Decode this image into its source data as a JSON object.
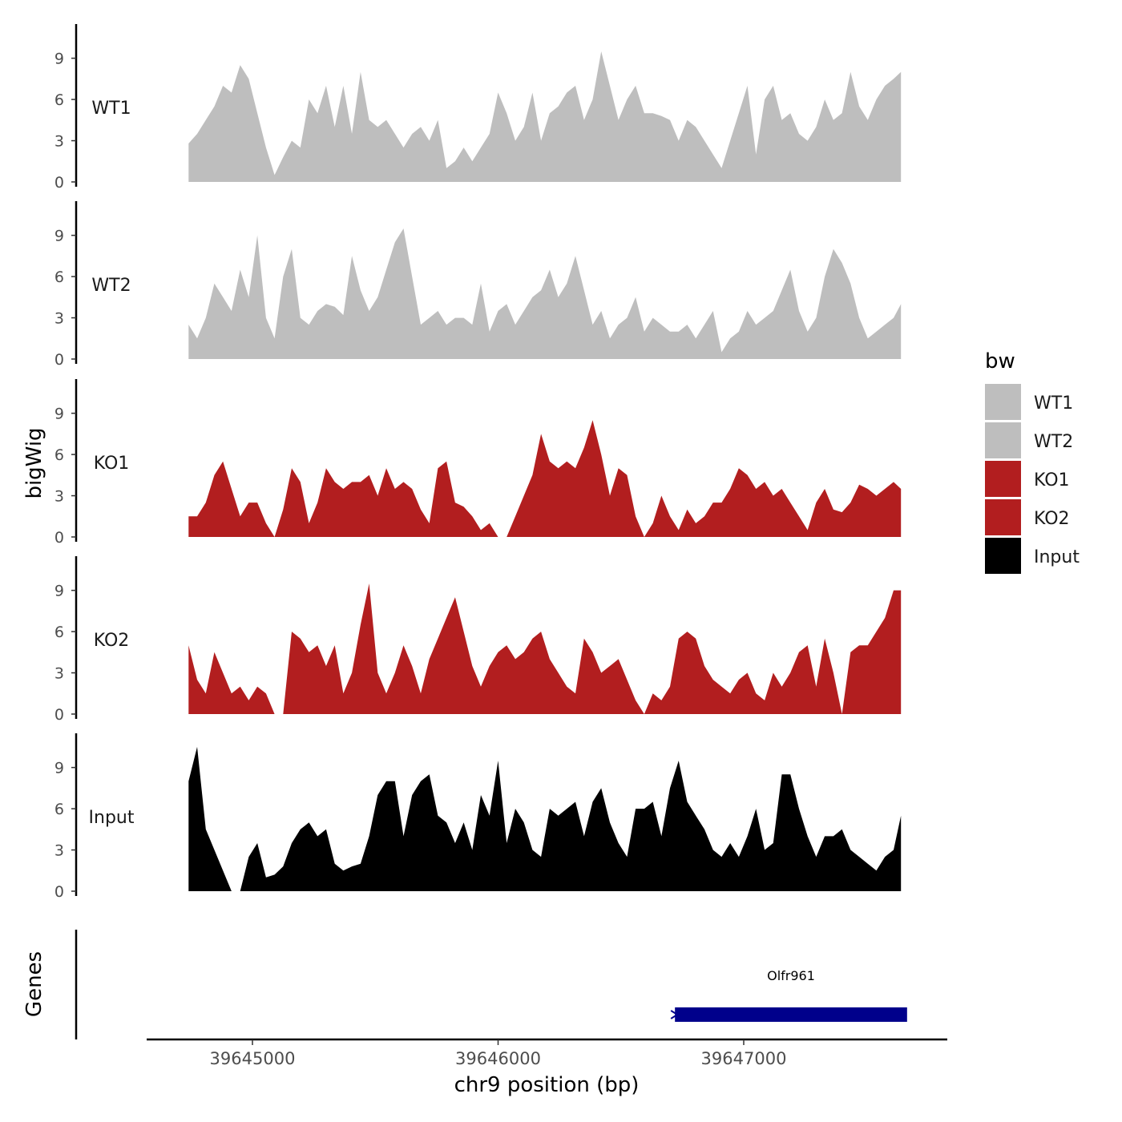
{
  "chart_data": {
    "type": "area",
    "ylabel": "bigWig",
    "xlabel": "chr9 position (bp)",
    "genes_label": "Genes",
    "legend": {
      "title": "bw",
      "position": "right"
    },
    "x_range": [
      39644400,
      39647750
    ],
    "x_ticks": [
      {
        "value": 39645000,
        "label": "39645000"
      },
      {
        "value": 39646000,
        "label": "39646000"
      },
      {
        "value": 39647000,
        "label": "39647000"
      }
    ],
    "y_range": [
      0,
      11.5
    ],
    "y_ticks": [
      {
        "value": 0,
        "label": "0"
      },
      {
        "value": 3,
        "label": "3"
      },
      {
        "value": 6,
        "label": "6"
      },
      {
        "value": 9,
        "label": "9"
      }
    ],
    "x": [
      39644740,
      39644775,
      39644810,
      39644845,
      39644880,
      39644915,
      39644950,
      39644985,
      39645020,
      39645055,
      39645090,
      39645125,
      39645160,
      39645195,
      39645230,
      39645265,
      39645300,
      39645335,
      39645370,
      39645405,
      39645440,
      39645475,
      39645510,
      39645545,
      39645580,
      39645615,
      39645650,
      39645685,
      39645720,
      39645755,
      39645790,
      39645825,
      39645860,
      39645895,
      39645930,
      39645965,
      39646000,
      39646035,
      39646070,
      39646105,
      39646140,
      39646175,
      39646210,
      39646245,
      39646280,
      39646315,
      39646350,
      39646385,
      39646420,
      39646455,
      39646490,
      39646525,
      39646560,
      39646595,
      39646630,
      39646665,
      39646700,
      39646735,
      39646770,
      39646805,
      39646840,
      39646875,
      39646910,
      39646945,
      39646980,
      39647015,
      39647050,
      39647085,
      39647120,
      39647155,
      39647190,
      39647225,
      39647260,
      39647295,
      39647330,
      39647365,
      39647400,
      39647435,
      39647470,
      39647505,
      39647540,
      39647575,
      39647610,
      39647640
    ],
    "series": [
      {
        "name": "WT1",
        "color": "#bebebe",
        "values": [
          2.8,
          3.5,
          4.5,
          5.5,
          7.0,
          6.5,
          8.5,
          7.5,
          5.0,
          2.5,
          0.5,
          1.8,
          3.0,
          2.5,
          6.0,
          5.0,
          7.0,
          4.0,
          7.0,
          3.5,
          8.0,
          4.5,
          4.0,
          4.5,
          3.5,
          2.5,
          3.5,
          4.0,
          3.0,
          4.5,
          1.0,
          1.5,
          2.5,
          1.5,
          2.5,
          3.5,
          6.5,
          5.0,
          3.0,
          4.0,
          6.5,
          3.0,
          5.0,
          5.5,
          6.5,
          7.0,
          4.5,
          6.0,
          9.5,
          7.0,
          4.5,
          6.0,
          7.0,
          5.0,
          5.0,
          4.8,
          4.5,
          3.0,
          4.5,
          4.0,
          3.0,
          2.0,
          1.0,
          3.0,
          5.0,
          7.0,
          2.0,
          6.0,
          7.0,
          4.5,
          5.0,
          3.5,
          3.0,
          4.0,
          6.0,
          4.5,
          5.0,
          8.0,
          5.5,
          4.5,
          6.0,
          7.0,
          7.5,
          8.0
        ]
      },
      {
        "name": "WT2",
        "color": "#bebebe",
        "values": [
          2.5,
          1.5,
          3.0,
          5.5,
          4.5,
          3.5,
          6.5,
          4.5,
          9.0,
          3.0,
          1.5,
          6.0,
          8.0,
          3.0,
          2.5,
          3.5,
          4.0,
          3.8,
          3.2,
          7.5,
          5.0,
          3.5,
          4.5,
          6.5,
          8.5,
          9.5,
          6.0,
          2.5,
          3.0,
          3.5,
          2.5,
          3.0,
          3.0,
          2.5,
          5.5,
          2.0,
          3.5,
          4.0,
          2.5,
          3.5,
          4.5,
          5.0,
          6.5,
          4.5,
          5.5,
          7.5,
          5.0,
          2.5,
          3.5,
          1.5,
          2.5,
          3.0,
          4.5,
          2.0,
          3.0,
          2.5,
          2.0,
          2.0,
          2.5,
          1.5,
          2.5,
          3.5,
          0.5,
          1.5,
          2.0,
          3.5,
          2.5,
          3.0,
          3.5,
          5.0,
          6.5,
          3.5,
          2.0,
          3.0,
          6.0,
          8.0,
          7.0,
          5.5,
          3.0,
          1.5,
          2.0,
          2.5,
          3.0,
          4.0
        ]
      },
      {
        "name": "KO1",
        "color": "#b21e1f",
        "values": [
          1.5,
          1.5,
          2.5,
          4.5,
          5.5,
          3.5,
          1.5,
          2.5,
          2.5,
          1.0,
          0.0,
          2.0,
          5.0,
          4.0,
          1.0,
          2.5,
          5.0,
          4.0,
          3.5,
          4.0,
          4.0,
          4.5,
          3.0,
          5.0,
          3.5,
          4.0,
          3.5,
          2.0,
          1.0,
          5.0,
          5.5,
          2.5,
          2.2,
          1.5,
          0.5,
          1.0,
          0.0,
          0.0,
          1.5,
          3.0,
          4.5,
          7.5,
          5.5,
          5.0,
          5.5,
          5.0,
          6.5,
          8.5,
          6.0,
          3.0,
          5.0,
          4.5,
          1.5,
          0.0,
          1.0,
          3.0,
          1.5,
          0.5,
          2.0,
          1.0,
          1.5,
          2.5,
          2.5,
          3.5,
          5.0,
          4.5,
          3.5,
          4.0,
          3.0,
          3.5,
          2.5,
          1.5,
          0.5,
          2.5,
          3.5,
          2.0,
          1.8,
          2.5,
          3.8,
          3.5,
          3.0,
          3.5,
          4.0,
          3.5
        ]
      },
      {
        "name": "KO2",
        "color": "#b21e1f",
        "values": [
          5.0,
          2.5,
          1.5,
          4.5,
          3.0,
          1.5,
          2.0,
          1.0,
          2.0,
          1.5,
          0.0,
          0.0,
          6.0,
          5.5,
          4.5,
          5.0,
          3.5,
          5.0,
          1.5,
          3.0,
          6.5,
          9.5,
          3.0,
          1.5,
          3.0,
          5.0,
          3.5,
          1.5,
          4.0,
          5.5,
          7.0,
          8.5,
          6.0,
          3.5,
          2.0,
          3.5,
          4.5,
          5.0,
          4.0,
          4.5,
          5.5,
          6.0,
          4.0,
          3.0,
          2.0,
          1.5,
          5.5,
          4.5,
          3.0,
          3.5,
          4.0,
          2.5,
          1.0,
          0.0,
          1.5,
          1.0,
          2.0,
          5.5,
          6.0,
          5.5,
          3.5,
          2.5,
          2.0,
          1.5,
          2.5,
          3.0,
          1.5,
          1.0,
          3.0,
          2.0,
          3.0,
          4.5,
          5.0,
          2.0,
          5.5,
          3.0,
          0.0,
          4.5,
          5.0,
          5.0,
          6.0,
          7.0,
          9.0,
          9.0
        ]
      },
      {
        "name": "Input",
        "color": "#000000",
        "values": [
          8.0,
          10.5,
          4.5,
          3.0,
          1.5,
          0.0,
          0.0,
          2.5,
          3.5,
          1.0,
          1.2,
          1.8,
          3.5,
          4.5,
          5.0,
          4.0,
          4.5,
          2.0,
          1.5,
          1.8,
          2.0,
          4.0,
          7.0,
          8.0,
          8.0,
          4.0,
          7.0,
          8.0,
          8.5,
          5.5,
          5.0,
          3.5,
          5.0,
          3.0,
          7.0,
          5.5,
          9.5,
          3.5,
          6.0,
          5.0,
          3.0,
          2.5,
          6.0,
          5.5,
          6.0,
          6.5,
          4.0,
          6.5,
          7.5,
          5.0,
          3.5,
          2.5,
          6.0,
          6.0,
          6.5,
          4.0,
          7.5,
          9.5,
          6.5,
          5.5,
          4.5,
          3.0,
          2.5,
          3.5,
          2.5,
          4.0,
          6.0,
          3.0,
          3.5,
          8.5,
          8.5,
          6.0,
          4.0,
          2.5,
          4.0,
          4.0,
          4.5,
          3.0,
          2.5,
          2.0,
          1.5,
          2.5,
          3.0,
          5.5
        ]
      }
    ],
    "genes": [
      {
        "name": "Olfr961",
        "start": 39646720,
        "end": 39647665,
        "strand": "+",
        "color": "#00008b"
      }
    ]
  }
}
